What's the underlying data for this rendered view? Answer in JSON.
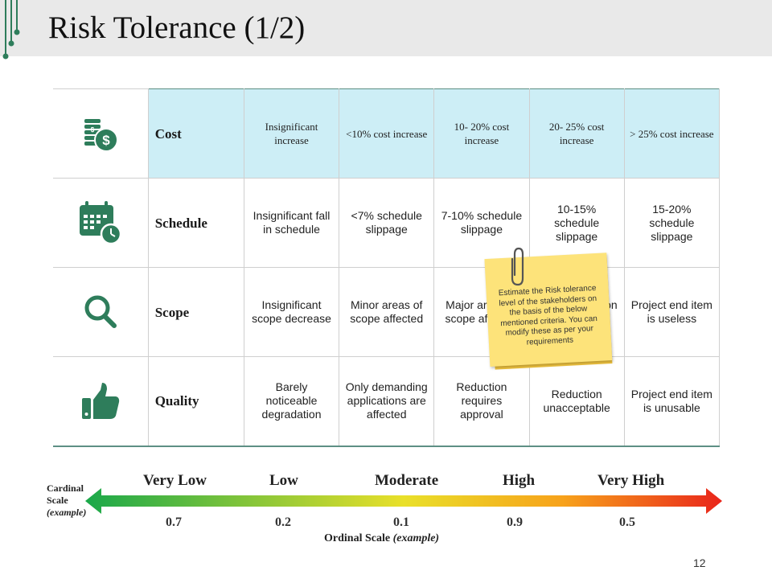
{
  "title": "Risk Tolerance (1/2)",
  "colors": {
    "accent": "#2e7d5b",
    "header_fill": "#cdeef6",
    "note": "#fde37a"
  },
  "table": {
    "rows": [
      {
        "icon": "money-stack-icon",
        "label": "Cost",
        "values": [
          "Insignificant increase",
          "<10% cost increase",
          "10- 20% cost increase",
          "20- 25% cost increase",
          "> 25% cost increase"
        ]
      },
      {
        "icon": "calendar-clock-icon",
        "label": "Schedule",
        "values": [
          "Insignificant fall in schedule",
          "<7% schedule slippage",
          "7-10% schedule slippage",
          "10-15% schedule slippage",
          "15-20% schedule slippage"
        ]
      },
      {
        "icon": "magnifier-icon",
        "label": "Scope",
        "values": [
          "Insignificant scope decrease",
          "Minor areas of scope affected",
          "Major areas of scope affected",
          "Scope reduction unacceptable",
          "Project end item is useless"
        ]
      },
      {
        "icon": "thumbs-up-icon",
        "label": "Quality",
        "values": [
          "Barely noticeable degradation",
          "Only demanding applications are affected",
          "Reduction requires approval",
          "Reduction unacceptable",
          "Project end item is unusable"
        ]
      }
    ]
  },
  "sticky_note": "Estimate the Risk tolerance level of the stakeholders on the basis of the below mentioned criteria. You can modify these as per your requirements",
  "scale": {
    "labels": [
      "Very Low",
      "Low",
      "Moderate",
      "High",
      "Very High"
    ],
    "values": [
      "0.7",
      "0.2",
      "0.1",
      "0.9",
      "0.5"
    ],
    "cardinal_label": "Cardinal",
    "cardinal_label2": "Scale",
    "cardinal_note": "(example)",
    "ordinal_label": "Ordinal Scale",
    "ordinal_note": "(example)",
    "gradient_colors": [
      "#1aa84a",
      "#e9e02a",
      "#f7a21b",
      "#e9251b"
    ]
  },
  "page_number": "12"
}
